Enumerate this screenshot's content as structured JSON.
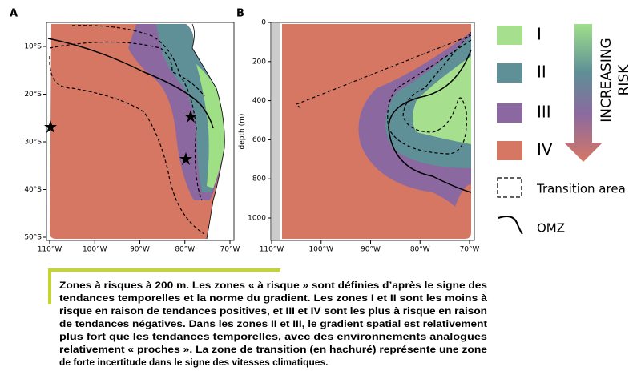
{
  "panel_a": {
    "label": "A",
    "xticks": [
      "110°W",
      "100°W",
      "90°W",
      "80°W",
      "70°W"
    ],
    "yticks": [
      "10°S",
      "20°S",
      "30°S",
      "40°S",
      "50°S"
    ]
  },
  "panel_b": {
    "label": "B",
    "xticks": [
      "110°W",
      "100°W",
      "90°W",
      "80°W",
      "70°W"
    ],
    "yticks": [
      "0",
      "200",
      "400",
      "600",
      "800",
      "1000"
    ],
    "ylabel": "depth (m)"
  },
  "legend": {
    "zones": [
      "I",
      "II",
      "III",
      "IV"
    ],
    "arrow": [
      "INCREASING",
      "RISK"
    ],
    "transition": "Transition area",
    "omz": "OMZ"
  },
  "caption": [
    "Zones à risques à 200 m. Les zones « à risque » sont définies d’après le signe des",
    "tendances temporelles et la norme du gradient. Les zones I et II sont les moins à",
    "risque en raison de tendances positives, et III et IV sont les plus à risque en raison",
    "de tendances négatives. Dans les zones II et III, le gradient spatial est relativement",
    "plus fort que les tendances temporelles, avec des environnements analogues",
    "relativement « proches ». La zone de transition (en hachuré) représente une zone",
    "de forte incertitude dans le signe des vitesses climatiques."
  ]
}
